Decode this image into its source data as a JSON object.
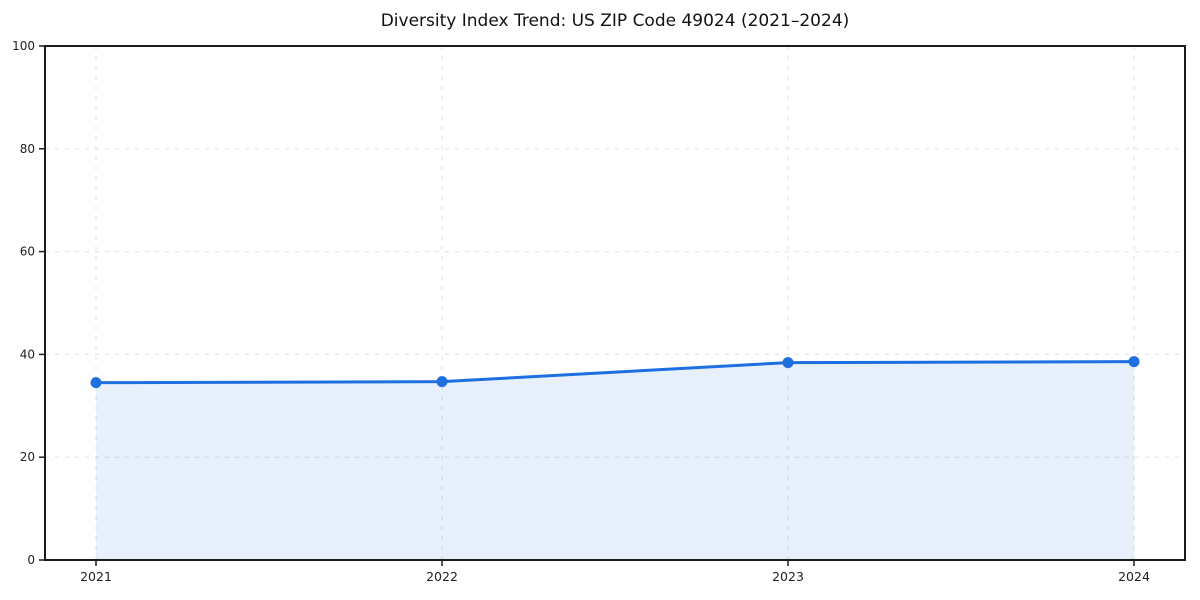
{
  "chart_data": {
    "type": "area",
    "title": "Diversity Index Trend: US ZIP Code 49024 (2021–2024)",
    "xlabel": "",
    "ylabel": "",
    "x": [
      2021,
      2022,
      2023,
      2024
    ],
    "series": [
      {
        "name": "Diversity Index",
        "values": [
          34.5,
          34.7,
          38.4,
          38.6
        ]
      }
    ],
    "ylim": [
      0,
      100
    ],
    "yticks": [
      0,
      20,
      40,
      60,
      80,
      100
    ],
    "grid": "both-dashed",
    "legend": "none",
    "colors": {
      "line": "#1e6fe0",
      "marker": "#1e6fe0",
      "fill": "#1e6fe0",
      "fill_opacity": 0.1,
      "gridline": "#e0e0e0",
      "spine": "#1c1c1c",
      "tick_label": "#222222",
      "title": "#111111",
      "background": "#ffffff"
    }
  }
}
